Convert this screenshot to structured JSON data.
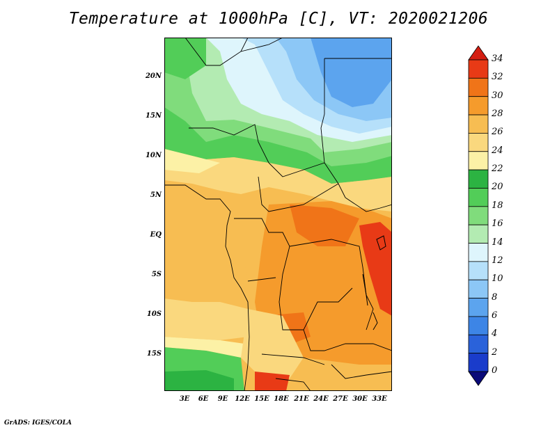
{
  "title": "Temperature at 1000hPa [C], VT: 2020021206",
  "footer": "GrADS: IGES/COLA",
  "y_ticks": [
    "20N",
    "15N",
    "10N",
    "5N",
    "EQ",
    "5S",
    "10S",
    "15S"
  ],
  "x_ticks": [
    "3E",
    "6E",
    "9E",
    "12E",
    "15E",
    "18E",
    "21E",
    "24E",
    "27E",
    "30E",
    "33E"
  ],
  "colorbar": {
    "labels": [
      "0",
      "2",
      "4",
      "6",
      "8",
      "10",
      "12",
      "14",
      "16",
      "18",
      "20",
      "22",
      "24",
      "26",
      "28",
      "30",
      "32",
      "34"
    ],
    "colors": [
      "#0a0a78",
      "#1a3ccb",
      "#2a62da",
      "#3d85e6",
      "#5ca4ee",
      "#8cc7f6",
      "#b6e0fa",
      "#def5fc",
      "#b3ebb2",
      "#80dc7c",
      "#52cd58",
      "#2cb342",
      "#fcf1a6",
      "#fad87e",
      "#f7bd52",
      "#f59b2c",
      "#f07418",
      "#e83a16",
      "#d41e12"
    ]
  },
  "colors": {
    "green_dark": "#2cb342",
    "green_mid": "#52cd58",
    "green_light": "#80dc7c",
    "green_pale": "#b3ebb2",
    "blue_pale": "#def5fc",
    "blue_light": "#b6e0fa",
    "blue_mid": "#8cc7f6",
    "blue": "#5ca4ee",
    "yellow_pale": "#fcf1a6",
    "yellow": "#fad87e",
    "orange_light": "#f7bd52",
    "orange": "#f59b2c",
    "orange_dark": "#f07418",
    "red": "#e83a16"
  }
}
